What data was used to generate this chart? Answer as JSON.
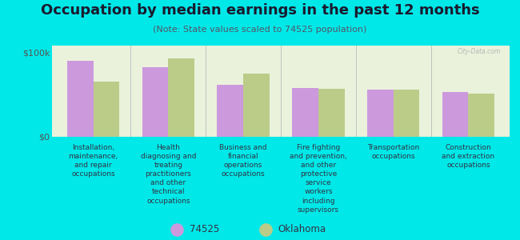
{
  "title": "Occupation by median earnings in the past 12 months",
  "subtitle": "(Note: State values scaled to 74525 population)",
  "background_color": "#00e8e8",
  "plot_bg_color": "#eaf2dc",
  "categories": [
    "Installation,\nmaintenance,\nand repair\noccupations",
    "Health\ndiagnosing and\ntreating\npractitioners\nand other\ntechnical\noccupations",
    "Business and\nfinancial\noperations\noccupations",
    "Fire fighting\nand prevention,\nand other\nprotective\nservice\nworkers\nincluding\nsupervisors",
    "Transportation\noccupations",
    "Construction\nand extraction\noccupations"
  ],
  "values_74525": [
    90000,
    82000,
    62000,
    58000,
    56000,
    53000
  ],
  "values_oklahoma": [
    65000,
    93000,
    75000,
    57000,
    56000,
    51000
  ],
  "color_74525": "#cc99dd",
  "color_oklahoma": "#bbcc88",
  "ylabel_100k": "$100k",
  "ylabel_0": "$0",
  "legend_74525": "74525",
  "legend_oklahoma": "Oklahoma",
  "ylim": [
    0,
    108000
  ],
  "bar_width": 0.35,
  "watermark": "City-Data.com",
  "title_fontsize": 13,
  "subtitle_fontsize": 8,
  "label_fontsize": 6.5,
  "legend_fontsize": 8.5
}
